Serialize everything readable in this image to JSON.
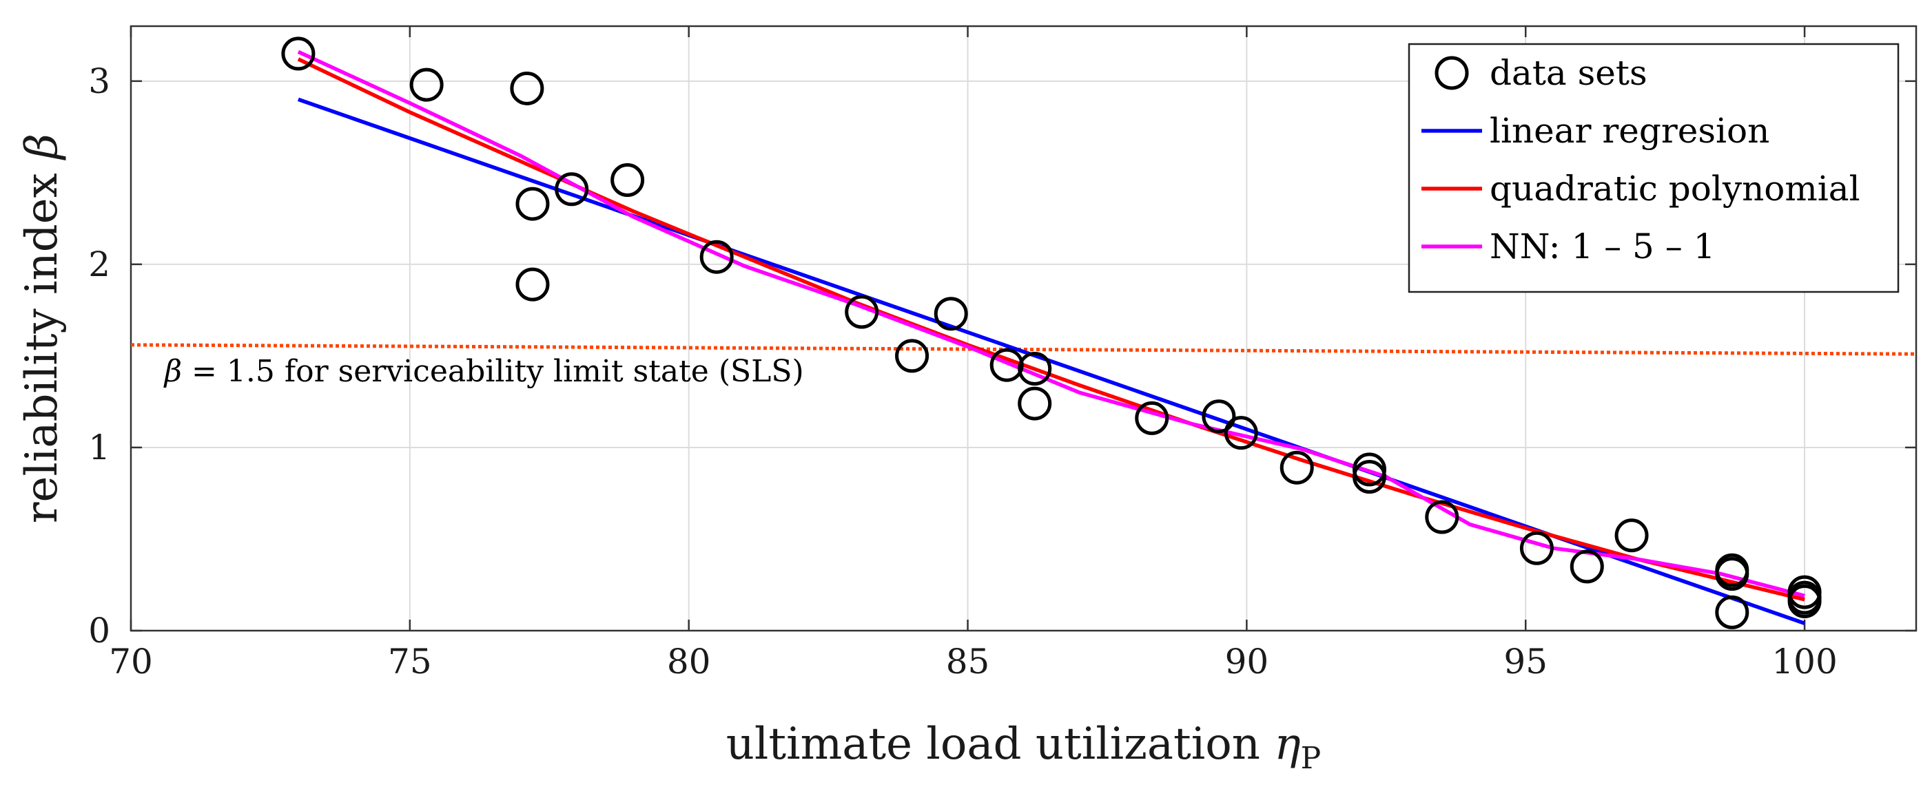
{
  "chart_data": {
    "type": "scatter",
    "title": "",
    "xlabel": "ultimate load utilization",
    "xlabel_symbol": "η",
    "xlabel_subscript": "P",
    "ylabel": "reliability index",
    "ylabel_symbol": "β",
    "xlim": [
      70,
      102
    ],
    "ylim": [
      0,
      3.3
    ],
    "xticks": [
      70,
      75,
      80,
      85,
      90,
      95,
      100
    ],
    "yticks": [
      0,
      1,
      2,
      3
    ],
    "grid": true,
    "legend_position": "top-right",
    "series": [
      {
        "name": "data sets",
        "kind": "markers",
        "color": "#000000",
        "points": [
          [
            73.0,
            3.15
          ],
          [
            75.3,
            2.98
          ],
          [
            77.1,
            2.96
          ],
          [
            77.2,
            2.33
          ],
          [
            77.9,
            2.41
          ],
          [
            78.9,
            2.46
          ],
          [
            77.2,
            1.89
          ],
          [
            80.5,
            2.04
          ],
          [
            83.1,
            1.74
          ],
          [
            84.0,
            1.5
          ],
          [
            84.7,
            1.73
          ],
          [
            85.7,
            1.45
          ],
          [
            86.2,
            1.43
          ],
          [
            86.2,
            1.24
          ],
          [
            88.3,
            1.16
          ],
          [
            89.5,
            1.17
          ],
          [
            89.9,
            1.08
          ],
          [
            90.9,
            0.89
          ],
          [
            92.2,
            0.88
          ],
          [
            92.2,
            0.84
          ],
          [
            93.5,
            0.62
          ],
          [
            95.2,
            0.45
          ],
          [
            96.1,
            0.35
          ],
          [
            96.9,
            0.52
          ],
          [
            98.7,
            0.33
          ],
          [
            98.7,
            0.31
          ],
          [
            98.7,
            0.1
          ],
          [
            100.0,
            0.21
          ],
          [
            100.0,
            0.18
          ],
          [
            100.0,
            0.16
          ]
        ]
      },
      {
        "name": "linear regresion",
        "kind": "line",
        "color": "#0000ff",
        "points": [
          [
            73.0,
            2.9
          ],
          [
            100.0,
            0.04
          ]
        ]
      },
      {
        "name": "quadratic polynomial",
        "kind": "line",
        "color": "#ff0000",
        "points": [
          [
            73,
            3.12
          ],
          [
            75,
            2.83
          ],
          [
            77,
            2.56
          ],
          [
            79,
            2.29
          ],
          [
            81,
            2.04
          ],
          [
            83,
            1.79
          ],
          [
            85,
            1.56
          ],
          [
            87,
            1.34
          ],
          [
            89,
            1.13
          ],
          [
            91,
            0.93
          ],
          [
            93,
            0.74
          ],
          [
            95,
            0.56
          ],
          [
            97,
            0.39
          ],
          [
            100,
            0.17
          ]
        ]
      },
      {
        "name": "NN: 1 – 5 – 1",
        "kind": "line",
        "color": "#ff00ff",
        "points": [
          [
            73,
            3.16
          ],
          [
            75,
            2.88
          ],
          [
            77,
            2.59
          ],
          [
            79,
            2.26
          ],
          [
            81,
            1.99
          ],
          [
            83,
            1.78
          ],
          [
            85,
            1.55
          ],
          [
            87,
            1.3
          ],
          [
            89,
            1.13
          ],
          [
            91,
            0.99
          ],
          [
            92.5,
            0.84
          ],
          [
            94,
            0.58
          ],
          [
            95.5,
            0.45
          ],
          [
            97,
            0.39
          ],
          [
            98.5,
            0.31
          ],
          [
            100,
            0.19
          ]
        ]
      },
      {
        "name": "SLS threshold",
        "kind": "threshold",
        "color": "#ff4500",
        "points": [
          [
            70,
            1.56
          ],
          [
            102,
            1.51
          ]
        ]
      }
    ],
    "annotations": [
      {
        "symbol": "β",
        "text": " = 1.5  for serviceability limit state (SLS)",
        "x": 70.6,
        "y": 1.36
      }
    ]
  }
}
